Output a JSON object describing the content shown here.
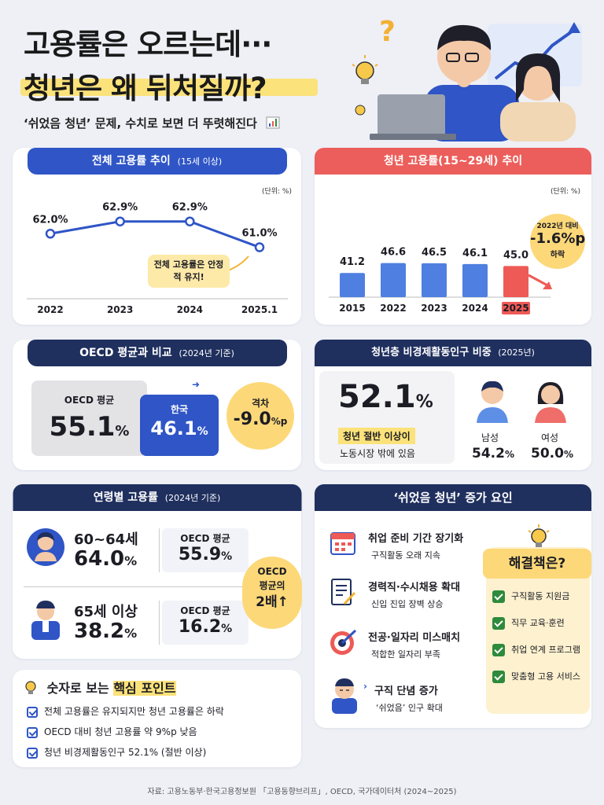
{
  "header": {
    "title_line1": "고용률은 오르는데···",
    "title_line2": "청년은 왜 뒤처질까?",
    "subtitle": "‘쉬었음 청년’ 문제, 수치로 보면 더 뚜렷해진다"
  },
  "overall": {
    "tab": "전체 고용률 추이",
    "tab_sub": "(15세 이상)",
    "unit": "(단위: %)",
    "callout": "전체 고용률은 안정적 유지!",
    "chart_data": {
      "type": "line",
      "categories": [
        "2022",
        "2023",
        "2024",
        "2025.1"
      ],
      "values": [
        62.0,
        62.9,
        62.9,
        61.0
      ],
      "labels": [
        "62.0%",
        "62.9%",
        "62.9%",
        "61.0%"
      ]
    }
  },
  "youth": {
    "tab": "청년 고용률(15~29세) 추이",
    "unit": "(단위: %)",
    "badge_top": "2022년 대비",
    "badge_value": "-1.6%p",
    "badge_bottom": "하락",
    "chart_data": {
      "type": "bar",
      "categories": [
        "2015",
        "2022",
        "2023",
        "2024",
        "2025"
      ],
      "values": [
        41.2,
        46.6,
        46.5,
        46.1,
        45.0
      ],
      "labels": [
        "41.2",
        "46.6",
        "46.5",
        "46.1",
        "45.0"
      ],
      "colors": [
        "#4f7fe0",
        "#4f7fe0",
        "#4f7fe0",
        "#4f7fe0",
        "#ee5a56"
      ]
    }
  },
  "oecd": {
    "tab": "OECD 평균과 비교",
    "tab_sub": "(2024년 기준)",
    "oecd_label": "OECD 평균",
    "oecd_value": "55.1",
    "korea_label": "한국",
    "korea_value": "46.1",
    "pct": "%",
    "gap_label": "격차",
    "gap_value": "-9.0",
    "gap_unit": "%p"
  },
  "inactive": {
    "tab": "청년층 비경제활동인구 비중",
    "tab_sub": "(2025년)",
    "big_value": "52.1",
    "pct": "%",
    "highlight": "청년 절반 이상이",
    "desc": "노동시장 밖에 있음",
    "male_label": "남성",
    "male_value": "54.2",
    "female_label": "여성",
    "female_value": "50.0"
  },
  "age": {
    "tab": "연령별 고용률",
    "tab_sub": "(2024년 기준)",
    "rows": [
      {
        "label": "60~64세",
        "value": "64.0",
        "oecd_label": "OECD 평균",
        "oecd_value": "55.9"
      },
      {
        "label": "65세 이상",
        "value": "38.2",
        "oecd_label": "OECD 평균",
        "oecd_value": "16.2"
      }
    ],
    "pct": "%",
    "bubble": [
      "OECD",
      "평균의",
      "2배↑"
    ]
  },
  "causes": {
    "tab": "‘쉬었음 청년’ 증가 요인",
    "items": [
      {
        "title": "취업 준비 기간 장기화",
        "desc": "구직활동 오래 지속"
      },
      {
        "title": "경력직·수시채용 확대",
        "desc": "신입 진입 장벽 상승"
      },
      {
        "title": "전공·일자리 미스매치",
        "desc": "적합한 일자리 부족"
      },
      {
        "title": "구직 단념 증가",
        "desc": "‘쉬었음’ 인구 확대"
      }
    ],
    "solution_title": "해결책은?",
    "solutions": [
      "구직활동 지원금",
      "직무 교육·훈련",
      "취업 연계 프로그램",
      "맞춤형 고용 서비스"
    ]
  },
  "points": {
    "title_a": "숫자로 보는 ",
    "title_b": "핵심 포인트",
    "items": [
      "전체 고용률은 유지되지만 청년 고용률은 하락",
      "OECD 대비 청년 고용률 약 9%p 낮음",
      "청년 비경제활동인구 52.1% (절반 이상)"
    ]
  },
  "source": "자료: 고용노동부·한국고용정보원 「고용동향브리프」, OECD, 국가데이터처 (2024~2025)"
}
